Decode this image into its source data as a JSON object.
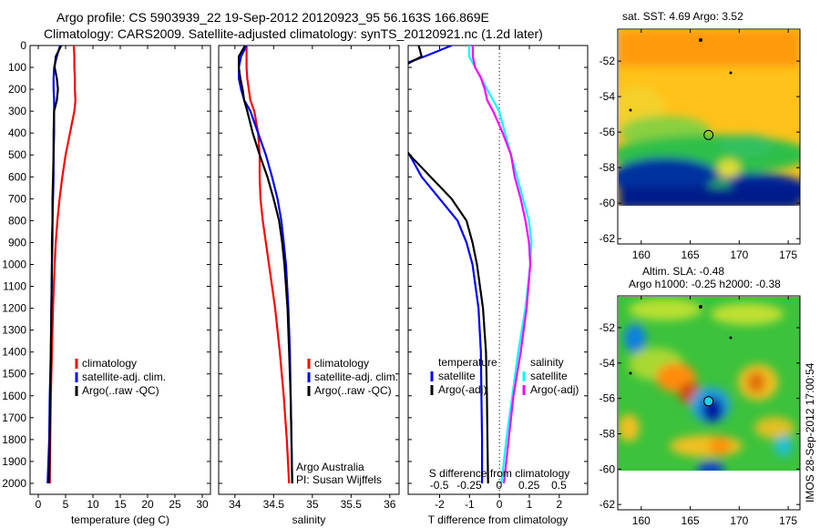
{
  "header": {
    "title_line1": "Argo profile: CS 5903939_22 19-Sep-2012 20120923_95 56.163S 166.869E",
    "title_line2": "Climatology: CARS2009. Satellite-adjusted climatology: synTS_20120921.nc (1.2d later)"
  },
  "colors": {
    "climatology": "#ff0000",
    "satellite": "#0000ff",
    "argo": "#000000",
    "sal_satellite": "#00ffff",
    "sal_argo": "#ff00ff"
  },
  "chart_data": [
    {
      "type": "line",
      "xlabel": "temperature (deg C)",
      "ylabel": "depth",
      "xlim": [
        -1.5,
        31.5
      ],
      "ylim": [
        2050,
        0
      ],
      "xticks": [
        0,
        5,
        10,
        15,
        20,
        25,
        30
      ],
      "yticks": [
        0,
        100,
        200,
        300,
        400,
        500,
        600,
        700,
        800,
        900,
        1000,
        1100,
        1200,
        1300,
        1400,
        1500,
        1600,
        1700,
        1800,
        1900,
        2000
      ],
      "depth": [
        0,
        50,
        100,
        150,
        200,
        250,
        300,
        400,
        500,
        600,
        700,
        800,
        900,
        1000,
        1200,
        1400,
        1600,
        1800,
        2000
      ],
      "legend": [
        "climatology",
        "satellite-adj. clim.",
        "Argo(..raw -QC)"
      ],
      "series": [
        {
          "name": "climatology",
          "color": "#ff0000",
          "values": [
            6.5,
            6.6,
            6.6,
            6.7,
            6.7,
            6.8,
            6.6,
            5.8,
            5.0,
            4.4,
            3.9,
            3.5,
            3.2,
            3.0,
            2.7,
            2.5,
            2.3,
            2.2,
            2.1
          ]
        },
        {
          "name": "satellite-adj. clim.",
          "color": "#0000ff",
          "values": [
            4.0,
            3.4,
            2.9,
            2.8,
            2.8,
            2.9,
            2.9,
            2.9,
            2.8,
            2.8,
            2.7,
            2.6,
            2.6,
            2.5,
            2.4,
            2.3,
            2.1,
            2.0,
            1.7
          ]
        },
        {
          "name": "Argo(..raw -QC)",
          "color": "#000000",
          "values": [
            4.2,
            3.2,
            3.0,
            3.4,
            3.6,
            3.4,
            2.9,
            2.8,
            2.8,
            2.7,
            2.6,
            2.6,
            2.5,
            2.5,
            2.4,
            2.3,
            2.2,
            2.1,
            2.0
          ]
        }
      ]
    },
    {
      "type": "line",
      "xlabel": "salinity",
      "xlim": [
        33.79,
        36.12
      ],
      "ylim": [
        2050,
        0
      ],
      "xticks": [
        34,
        34.5,
        35,
        35.5,
        36
      ],
      "depth": [
        0,
        50,
        100,
        150,
        200,
        250,
        300,
        400,
        500,
        600,
        700,
        800,
        900,
        1000,
        1200,
        1400,
        1600,
        1800,
        2000
      ],
      "legend": [
        "climatology",
        "satellite-adj. clim.",
        "Argo(..raw -QC)"
      ],
      "annotation": [
        "Argo Australia",
        "PI: Susan Wijffels"
      ],
      "series": [
        {
          "name": "climatology",
          "color": "#ff0000",
          "values": [
            34.15,
            34.15,
            34.15,
            34.16,
            34.18,
            34.2,
            34.25,
            34.3,
            34.32,
            34.32,
            34.33,
            34.36,
            34.4,
            34.44,
            34.52,
            34.58,
            34.63,
            34.67,
            34.7
          ]
        },
        {
          "name": "satellite-adj. clim.",
          "color": "#0000ff",
          "values": [
            34.15,
            34.08,
            34.05,
            34.05,
            34.08,
            34.12,
            34.2,
            34.3,
            34.4,
            34.48,
            34.55,
            34.6,
            34.63,
            34.66,
            34.69,
            34.71,
            34.72,
            34.73,
            34.74
          ]
        },
        {
          "name": "Argo(..raw -QC)",
          "color": "#000000",
          "values": [
            34.13,
            34.05,
            34.05,
            34.07,
            34.1,
            34.12,
            34.16,
            34.23,
            34.32,
            34.42,
            34.5,
            34.57,
            34.61,
            34.64,
            34.68,
            34.7,
            34.72,
            34.73,
            34.74
          ]
        }
      ]
    },
    {
      "type": "line",
      "xlabel": "T difference from climatology",
      "xlabel2": "S difference from climatology",
      "xlim": [
        -3.05,
        2.95
      ],
      "xlim2": [
        -0.76,
        0.74
      ],
      "ylim": [
        2050,
        0
      ],
      "xticks": [
        -2,
        -1,
        0,
        1,
        2
      ],
      "xticks2": [
        -0.5,
        -0.25,
        0,
        0.25,
        0.5
      ],
      "depth": [
        0,
        50,
        100,
        150,
        200,
        250,
        300,
        400,
        500,
        600,
        700,
        800,
        900,
        1000,
        1200,
        1400,
        1600,
        1800,
        2000
      ],
      "legend_temperature": {
        "title": "temperature",
        "items": [
          "satellite",
          "Argo(-adj)"
        ]
      },
      "legend_salinity": {
        "title": "salinity",
        "items": [
          "satellite",
          "Argo(-adj)"
        ]
      },
      "series": [
        {
          "name": "temperature satellite",
          "axis": "T",
          "color": "#0000ff",
          "values": [
            -1.6,
            -2.5,
            -3.5,
            -3.5,
            -3.5,
            -3.5,
            -3.5,
            -3.5,
            -3.0,
            -2.6,
            -2.0,
            -1.4,
            -1.1,
            -0.9,
            -0.7,
            -0.62,
            -0.6,
            -0.58,
            -0.58
          ]
        },
        {
          "name": "temperature Argo(-adj)",
          "axis": "T",
          "color": "#000000",
          "values": [
            -2.7,
            -2.6,
            -3.3,
            -3.5,
            -3.5,
            -3.5,
            -3.5,
            -3.5,
            -3.0,
            -2.3,
            -1.6,
            -1.1,
            -0.9,
            -0.75,
            -0.55,
            -0.45,
            -0.42,
            -0.4,
            -0.38
          ]
        },
        {
          "name": "salinity satellite",
          "axis": "S",
          "color": "#00ffff",
          "values": [
            -0.25,
            -0.25,
            -0.2,
            -0.15,
            -0.1,
            -0.05,
            0.0,
            0.05,
            0.1,
            0.15,
            0.2,
            0.25,
            0.27,
            0.26,
            0.22,
            0.16,
            0.11,
            0.06,
            0.02
          ]
        },
        {
          "name": "salinity Argo(-adj)",
          "axis": "S",
          "color": "#ff00ff",
          "values": [
            -0.22,
            -0.22,
            -0.2,
            -0.15,
            -0.12,
            -0.1,
            -0.05,
            0.03,
            0.1,
            0.13,
            0.18,
            0.22,
            0.25,
            0.26,
            0.23,
            0.18,
            0.12,
            0.08,
            0.04
          ]
        }
      ]
    },
    {
      "type": "heatmap",
      "title": "sat. SST: 4.69 Argo: 3.52",
      "xlim": [
        157.6,
        176.2
      ],
      "ylim": [
        -62.3,
        -50.2
      ],
      "xticks": [
        160,
        165,
        170,
        175
      ],
      "yticks": [
        -52,
        -54,
        -56,
        -58,
        -60,
        -62
      ],
      "float_position": [
        166.869,
        -56.163
      ]
    },
    {
      "type": "heatmap",
      "title_line1": "Altim. SLA: -0.48",
      "title_line2": "Argo h1000: -0.25 h2000: -0.38",
      "xlim": [
        157.6,
        176.2
      ],
      "ylim": [
        -62.3,
        -50.2
      ],
      "xticks": [
        160,
        165,
        170,
        175
      ],
      "yticks": [
        -52,
        -54,
        -56,
        -58,
        -60,
        -62
      ],
      "float_position": [
        166.869,
        -56.163
      ]
    }
  ],
  "footer": {
    "stamp": "IMOS 28-Sep-2012 17:00:54"
  }
}
